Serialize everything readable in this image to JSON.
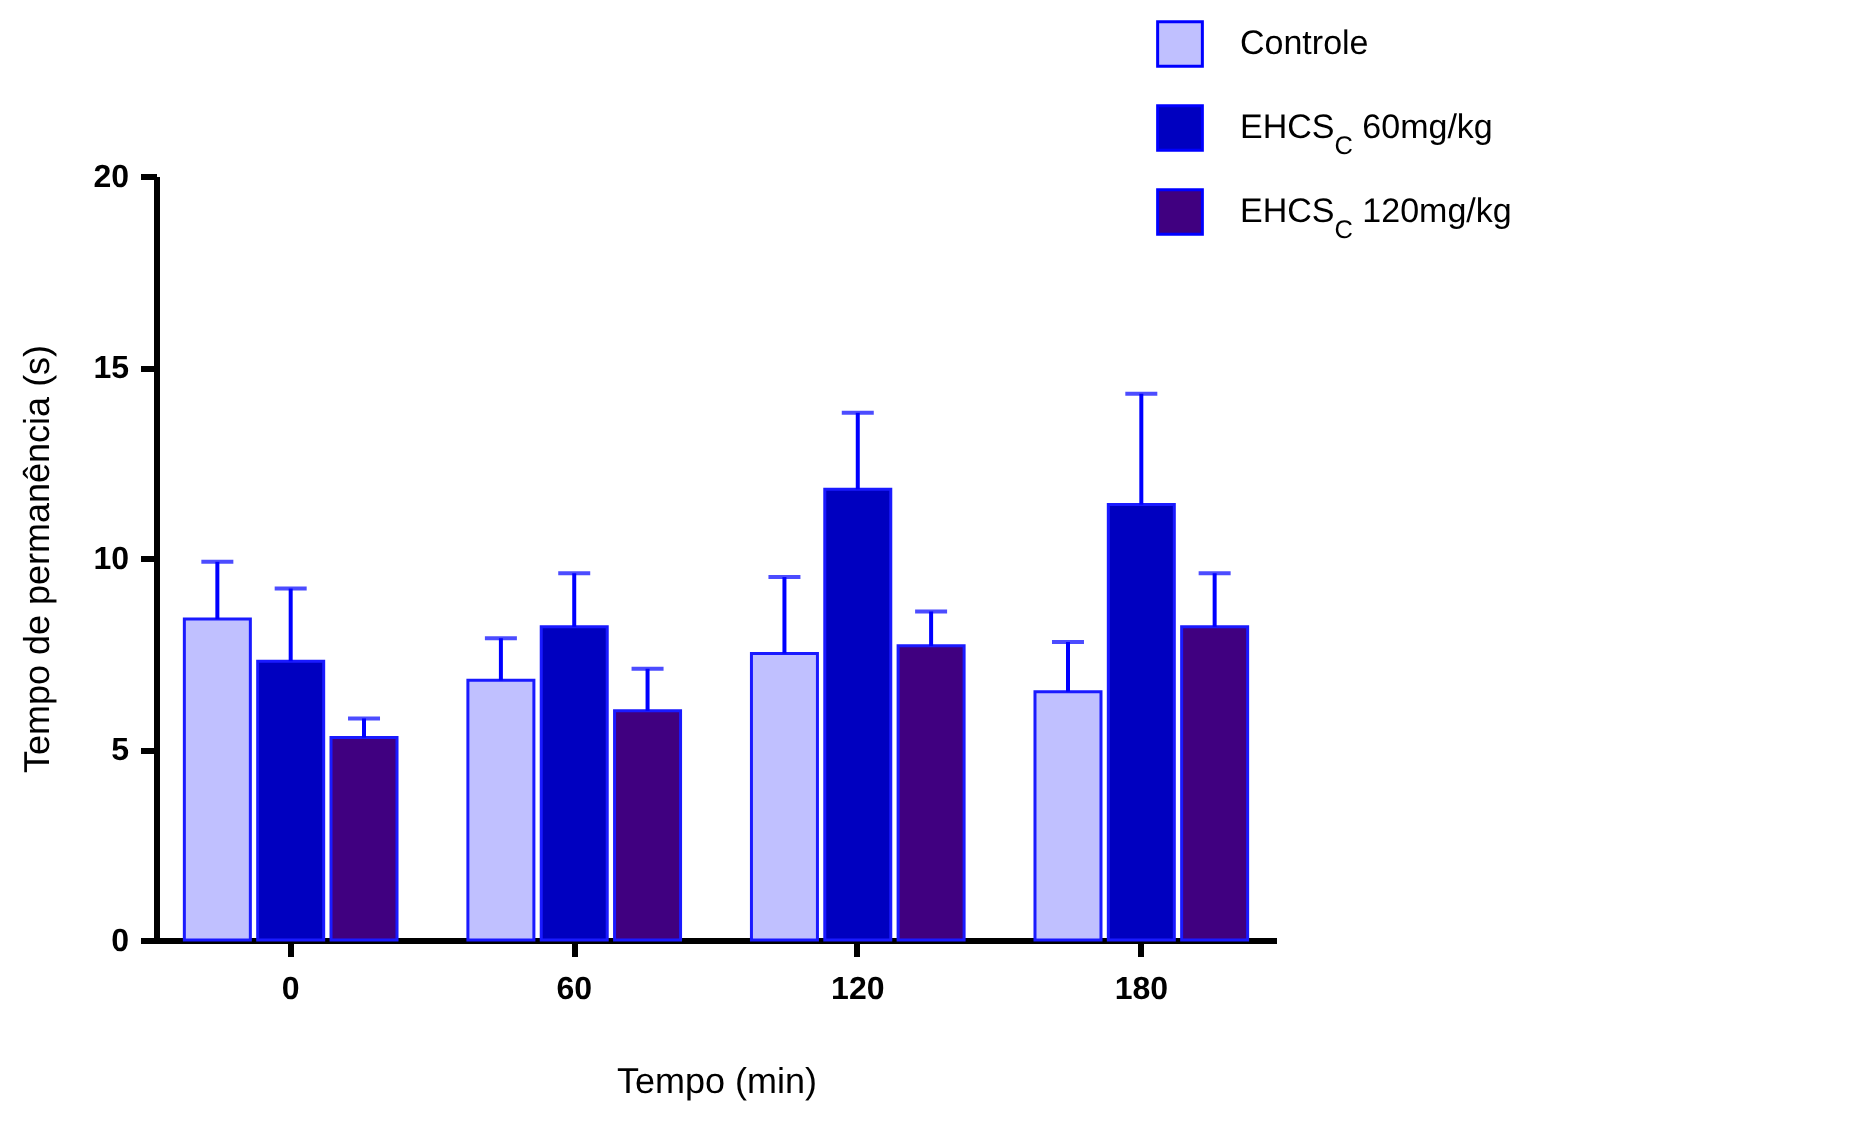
{
  "chart_data": {
    "type": "bar",
    "xlabel": "Tempo (min)",
    "ylabel": "Tempo de permanência (s)",
    "categories": [
      "0",
      "60",
      "120",
      "180"
    ],
    "series": [
      {
        "name": "Controle",
        "color": "#c0c0ff",
        "values": [
          8.4,
          6.8,
          7.5,
          6.5
        ],
        "errors": [
          [
            8.4,
            9.9
          ],
          [
            6.8,
            7.9
          ],
          [
            7.5,
            9.5
          ],
          [
            6.5,
            7.8
          ]
        ]
      },
      {
        "name": "EHCS$_{C}$ 60mg/kg",
        "color": "#0000c0",
        "values": [
          7.3,
          8.2,
          11.8,
          11.4
        ],
        "errors": [
          [
            7.3,
            9.2
          ],
          [
            8.2,
            9.6
          ],
          [
            11.8,
            13.8
          ],
          [
            11.4,
            14.3
          ]
        ]
      },
      {
        "name": "EHCS$_{C}$ 120mg/kg",
        "color": "#400080",
        "values": [
          5.3,
          6.0,
          7.7,
          8.2
        ],
        "errors": [
          [
            5.3,
            5.8
          ],
          [
            6.0,
            7.1
          ],
          [
            7.7,
            8.6
          ],
          [
            8.2,
            9.6
          ]
        ]
      }
    ],
    "ylim": [
      0,
      20
    ],
    "yticks": [
      0,
      5,
      10,
      15,
      20
    ],
    "grid": false,
    "legend": "top right"
  }
}
